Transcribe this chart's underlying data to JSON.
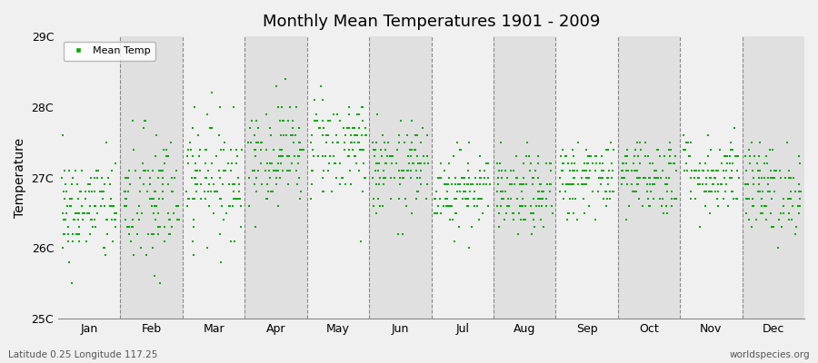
{
  "title": "Monthly Mean Temperatures 1901 - 2009",
  "ylabel": "Temperature",
  "ylim": [
    25.0,
    29.0
  ],
  "yticks": [
    25,
    26,
    27,
    28,
    29
  ],
  "ytick_labels": [
    "25C",
    "26C",
    "27C",
    "28C",
    "29C"
  ],
  "months": [
    "Jan",
    "Feb",
    "Mar",
    "Apr",
    "May",
    "Jun",
    "Jul",
    "Aug",
    "Sep",
    "Oct",
    "Nov",
    "Dec"
  ],
  "legend_label": "Mean Temp",
  "dot_color": "#00aa00",
  "bg_color_light": "#f0f0f0",
  "bg_color_dark": "#e0e0e0",
  "fig_bg": "#f0f0f0",
  "bottom_left": "Latitude 0.25 Longitude 117.25",
  "bottom_right": "worldspecies.org",
  "n_years": 109,
  "monthly_means": [
    26.55,
    26.65,
    27.0,
    27.35,
    27.45,
    27.1,
    26.85,
    26.75,
    27.0,
    27.05,
    27.05,
    26.85
  ],
  "monthly_stds": [
    0.38,
    0.52,
    0.42,
    0.38,
    0.38,
    0.32,
    0.28,
    0.28,
    0.28,
    0.28,
    0.28,
    0.32
  ],
  "seed": 42
}
